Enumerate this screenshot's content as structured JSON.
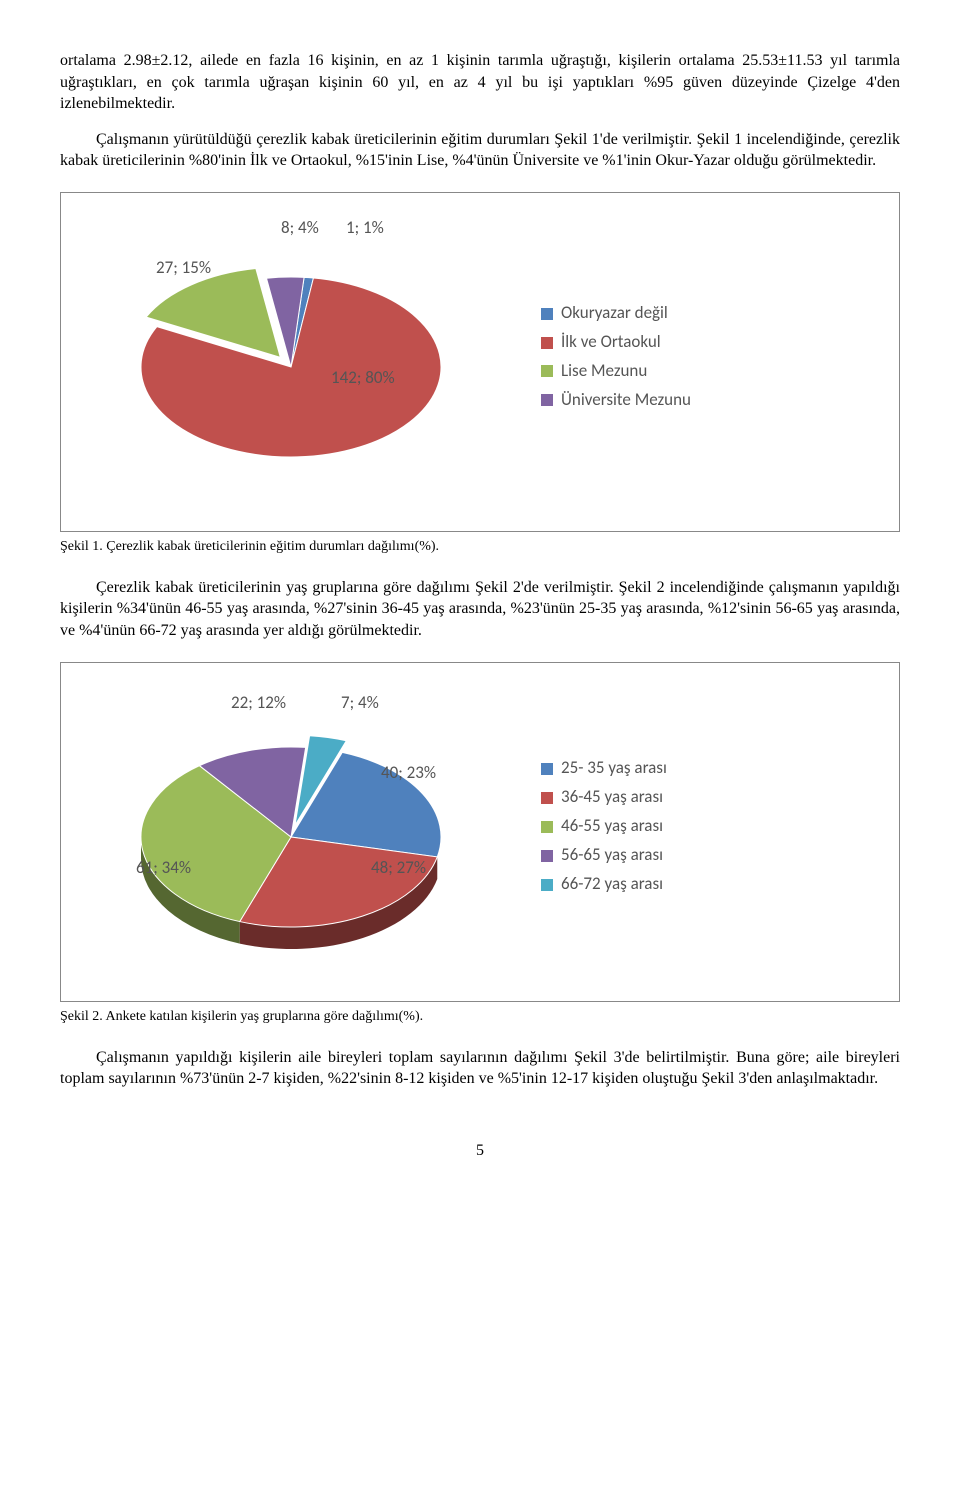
{
  "para1": "ortalama 2.98±2.12, ailede en fazla 16 kişinin, en az 1 kişinin tarımla uğraştığı, kişilerin ortalama 25.53±11.53 yıl tarımla uğraştıkları, en çok tarımla uğraşan kişinin 60 yıl, en az 4 yıl bu işi yaptıkları %95 güven düzeyinde Çizelge 4'den izlenebilmektedir.",
  "para2": "Çalışmanın yürütüldüğü çerezlik kabak üreticilerinin eğitim durumları Şekil 1'de verilmiştir. Şekil 1 incelendiğinde, çerezlik kabak üreticilerinin %80'inin İlk ve Ortaokul, %15'inin Lise, %4'ünün Üniversite ve %1'inin Okur-Yazar olduğu görülmektedir.",
  "caption1": "Şekil 1. Çerezlik kabak üreticilerinin eğitim durumları dağılımı(%).",
  "para3": "Çerezlik kabak üreticilerinin yaş gruplarına göre dağılımı Şekil 2'de verilmiştir. Şekil 2 incelendiğinde çalışmanın yapıldığı kişilerin %34'ünün 46-55 yaş arasında, %27'sinin 36-45 yaş arasında, %23'ünün 25-35 yaş arasında, %12'sinin 56-65 yaş arasında, ve %4'ünün 66-72 yaş arasında yer aldığı görülmektedir.",
  "caption2": "Şekil 2. Ankete katılan kişilerin yaş gruplarına göre dağılımı(%).",
  "para4": "Çalışmanın yapıldığı kişilerin aile bireyleri toplam sayılarının dağılımı Şekil 3'de belirtilmiştir. Buna göre; aile bireyleri toplam sayılarının %73'ünün 2-7 kişiden, %22'sinin 8-12 kişiden ve %5'inin 12-17 kişiden oluştuğu Şekil 3'den anlaşılmaktadır.",
  "pagenum": "5",
  "chart1": {
    "type": "pie3d",
    "slices": [
      {
        "label": "Okuryazar değil",
        "value": 1,
        "pct": 1,
        "color": "#4f81bd",
        "dlabel": "1; 1%"
      },
      {
        "label": "İlk ve Ortaokul",
        "value": 142,
        "pct": 80,
        "color": "#c0504d",
        "dlabel": "142; 80%"
      },
      {
        "label": "Lise Mezunu",
        "value": 27,
        "pct": 15,
        "color": "#9bbb59",
        "dlabel": "27; 15%",
        "exploded": true
      },
      {
        "label": "Üniversite Mezunu",
        "value": 8,
        "pct": 4,
        "color": "#8064a2",
        "dlabel": "8; 4%"
      }
    ],
    "font_family": "Calibri",
    "font_size": 17,
    "font_color": "#595959",
    "background": "#ffffff",
    "border_color": "#888888"
  },
  "chart2": {
    "type": "pie3d",
    "slices": [
      {
        "label": "25- 35 yaş arası",
        "value": 40,
        "pct": 23,
        "color": "#4f81bd",
        "dlabel": "40; 23%"
      },
      {
        "label": "36-45 yaş arası",
        "value": 48,
        "pct": 27,
        "color": "#c0504d",
        "dlabel": "48; 27%"
      },
      {
        "label": "46-55 yaş arası",
        "value": 61,
        "pct": 34,
        "color": "#9bbb59",
        "dlabel": "61; 34%"
      },
      {
        "label": "56-65 yaş arası",
        "value": 22,
        "pct": 12,
        "color": "#8064a2",
        "dlabel": "22; 12%"
      },
      {
        "label": "66-72 yaş arası",
        "value": 7,
        "pct": 4,
        "color": "#4bacc6",
        "dlabel": "7; 4%",
        "exploded": true
      }
    ],
    "font_family": "Calibri",
    "font_size": 17,
    "font_color": "#595959",
    "background": "#ffffff",
    "border_color": "#888888"
  }
}
